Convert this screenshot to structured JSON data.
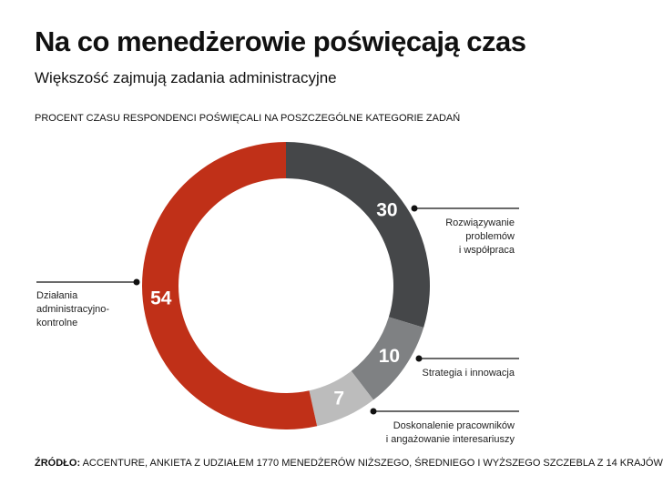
{
  "chart_data": {
    "type": "donut",
    "title": "Na co menedżerowie poświęcają czas",
    "subtitle": "Większość zajmują zadania administracyjne",
    "chart_heading": "PROCENT CZASU RESPONDENCI POŚWIĘCALI NA POSZCZEGÓLNE KATEGORIE ZADAŃ",
    "categories": [
      "Rozwiązywanie\nproblemów\ni współpraca",
      "Strategia i innowacja",
      "Doskonalenie pracowników\ni angażowanie interesariuszy",
      "Działania\nadministracyjno-\nkontrolne"
    ],
    "values": [
      30,
      10,
      7,
      54
    ],
    "colors": [
      "#454749",
      "#7f8183",
      "#bcbcbc",
      "#c03018"
    ],
    "source_label": "ŹRÓDŁO:",
    "source_text": "ACCENTURE, ANKIETA Z UDZIAŁEM 1770 MENEDŻERÓW NIŻSZEGO, ŚREDNIEGO I WYŻSZEGO SZCZEBLA Z 14 KRAJÓW"
  }
}
